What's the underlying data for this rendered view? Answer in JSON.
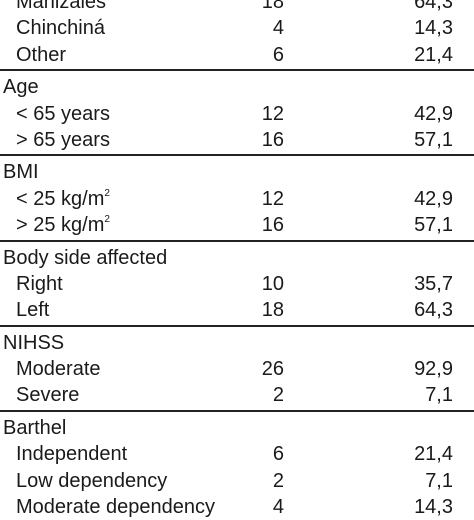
{
  "sections": [
    {
      "heading": "",
      "rows": [
        {
          "label": "Manizales",
          "n": "18",
          "pct": "64,3"
        },
        {
          "label": "Chinchiná",
          "n": "4",
          "pct": "14,3"
        },
        {
          "label": "Other",
          "n": "6",
          "pct": "21,4"
        }
      ]
    },
    {
      "heading": "Age",
      "rows": [
        {
          "label": "< 65 years",
          "n": "12",
          "pct": "42,9"
        },
        {
          "label": "> 65 years",
          "n": "16",
          "pct": "57,1"
        }
      ]
    },
    {
      "heading": "BMI",
      "rows": [
        {
          "label": "< 25 kg/m",
          "sup": "2",
          "n": "12",
          "pct": "42,9"
        },
        {
          "label": "> 25 kg/m",
          "sup": "2",
          "n": "16",
          "pct": "57,1"
        }
      ]
    },
    {
      "heading": "Body side affected",
      "rows": [
        {
          "label": "Right",
          "n": "10",
          "pct": "35,7"
        },
        {
          "label": "Left",
          "n": "18",
          "pct": "64,3"
        }
      ]
    },
    {
      "heading": "NIHSS",
      "rows": [
        {
          "label": "Moderate",
          "n": "26",
          "pct": "92,9"
        },
        {
          "label": "Severe",
          "n": "2",
          "pct": "7,1"
        }
      ]
    },
    {
      "heading": "Barthel",
      "rows": [
        {
          "label": "Independent",
          "n": "6",
          "pct": "21,4"
        },
        {
          "label": "Low dependency",
          "n": "2",
          "pct": "7,1"
        },
        {
          "label": "Moderate dependency",
          "n": "4",
          "pct": "14,3"
        }
      ]
    }
  ]
}
